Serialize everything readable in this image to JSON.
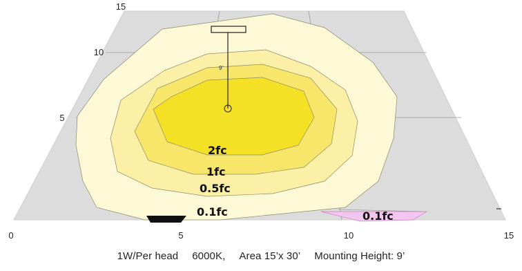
{
  "axes": {
    "x_ticks": [
      "0",
      "5",
      "10",
      "15"
    ],
    "y_ticks": [
      "15",
      "10",
      "5"
    ]
  },
  "contours": {
    "labels": [
      "2fc",
      "1fc",
      "0.5fc",
      "0.1fc",
      "0.1fc"
    ],
    "colors": {
      "plane": "#dcdcdc",
      "level_0_1": "#fdf8d6",
      "level_0_5": "#fbf0a6",
      "level_1": "#f8e66a",
      "level_2": "#f4e126",
      "accent_pink": "#f2c6ee"
    }
  },
  "fixture": {
    "height_label": "9'",
    "icon": "light-fixture-icon"
  },
  "caption": {
    "power": "1W/Per head",
    "color_temp": "6000K,",
    "area": "Area 15’x 30’",
    "mounting": "Mounting Height: 9’"
  }
}
